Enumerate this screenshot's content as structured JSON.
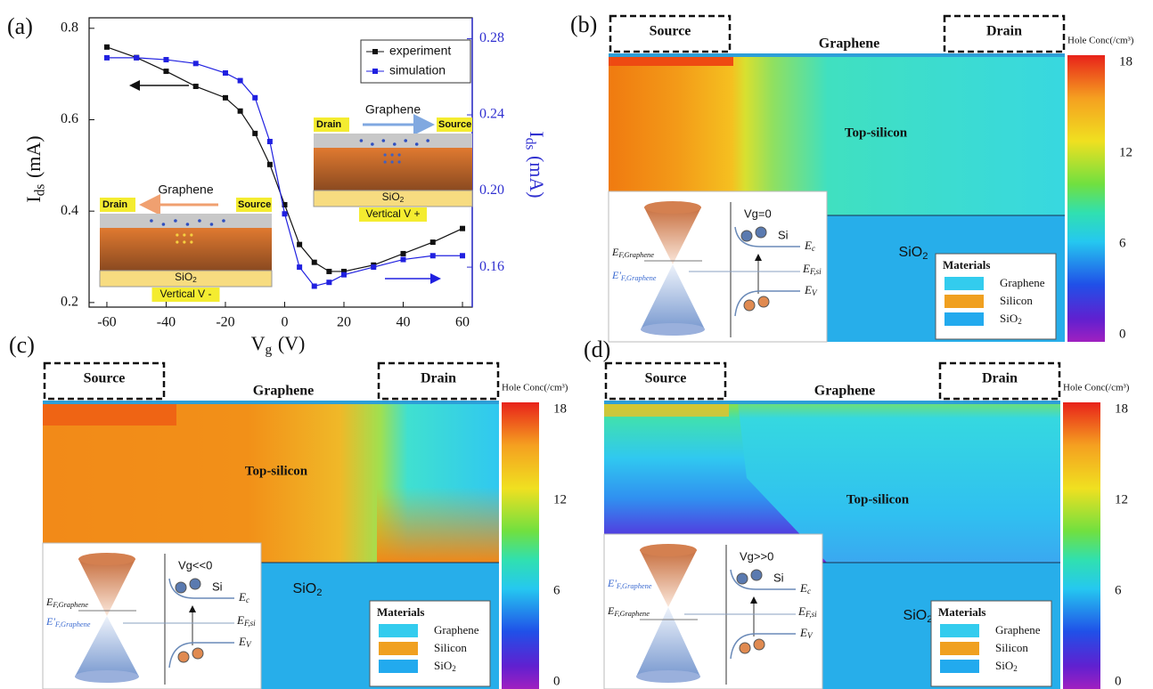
{
  "chart_data": {
    "type": "line",
    "panel_label": "(a)",
    "xlabel": {
      "base": "V",
      "sub": "g",
      "unit": "(V)"
    },
    "ylabel": {
      "base": "I",
      "sub": "ds",
      "unit": "(mA)"
    },
    "y2label": {
      "base": "I",
      "sub": "ds",
      "unit": "(mA)"
    },
    "x": [
      -60,
      -50,
      -40,
      -30,
      -20,
      -15,
      -10,
      -5,
      0,
      5,
      10,
      15,
      20,
      30,
      40,
      50,
      60
    ],
    "series": [
      {
        "name": "experiment",
        "color": "#111111",
        "values": [
          0.759,
          0.736,
          0.706,
          0.673,
          0.648,
          0.619,
          0.57,
          0.502,
          0.414,
          0.327,
          0.288,
          0.268,
          0.268,
          0.282,
          0.307,
          0.332,
          0.362
        ]
      },
      {
        "name": "simulation",
        "color": "#2020e0",
        "axis": "y2",
        "values": [
          0.27,
          0.27,
          0.269,
          0.267,
          0.262,
          0.258,
          0.249,
          0.226,
          0.188,
          0.16,
          0.15,
          0.152,
          0.156,
          0.16,
          0.164,
          0.166,
          0.166
        ]
      }
    ],
    "xlim": [
      -66,
      63.3
    ],
    "xticks": [
      -60,
      -40,
      -20,
      0,
      20,
      40,
      60
    ],
    "ylim": [
      0.19,
      0.823
    ],
    "yticks": [
      0.2,
      0.4,
      0.6,
      0.8
    ],
    "y2lim": [
      0.139,
      0.291
    ],
    "y2ticks": [
      0.16,
      {
        "value": 0.2,
        "label": "0.20"
      },
      0.24,
      0.28
    ],
    "legend": "upper right",
    "insets": [
      {
        "title": "Graphene",
        "left": "Drain",
        "right": "Source",
        "substrate": {
          "base": "SiO",
          "sub": "2"
        },
        "bias": "Vertical V -"
      },
      {
        "title": "Graphene",
        "left": "Drain",
        "right": "Source",
        "substrate": {
          "base": "SiO",
          "sub": "2"
        },
        "bias": "Vertical V +"
      }
    ]
  },
  "panels": [
    {
      "label": "(b)",
      "source": "Source",
      "drain": "Drain",
      "graphene": "Graphene",
      "silicon": "Top-silicon",
      "oxide": {
        "base": "SiO",
        "sub": "2"
      },
      "colorbar_title": "Hole Conc(/cm³)",
      "colorbar_ticks": [
        18,
        12,
        6,
        0
      ],
      "materials": {
        "title": "Materials",
        "items": [
          "Graphene",
          "Silicon",
          {
            "base": "SiO",
            "sub": "2"
          }
        ]
      },
      "band": {
        "gate": "Vg=0",
        "semiconductor": "Si",
        "ec": {
          "base": "E",
          "sub": "c"
        },
        "ef_graphene": {
          "base": "E",
          "sub": "F,Graphene"
        },
        "ef_graphene_shifted": {
          "base": "E'",
          "sub": "F,Graphene"
        },
        "ef_si": {
          "base": "E",
          "sub": "F,si"
        },
        "ev": {
          "base": "E",
          "sub": "V"
        }
      }
    },
    {
      "label": "(c)",
      "source": "Source",
      "drain": "Drain",
      "graphene": "Graphene",
      "silicon": "Top-silicon",
      "oxide": {
        "base": "SiO",
        "sub": "2"
      },
      "colorbar_title": "Hole Conc(/cm³)",
      "colorbar_ticks": [
        18,
        12,
        6,
        0
      ],
      "materials": {
        "title": "Materials",
        "items": [
          "Graphene",
          "Silicon",
          {
            "base": "SiO",
            "sub": "2"
          }
        ]
      },
      "band": {
        "gate": "Vg<<0",
        "semiconductor": "Si",
        "ec": {
          "base": "E",
          "sub": "c"
        },
        "ef_graphene": {
          "base": "E",
          "sub": "F,Graphene"
        },
        "ef_graphene_shifted": {
          "base": "E'",
          "sub": "F,Graphene"
        },
        "ef_si": {
          "base": "E",
          "sub": "F,si"
        },
        "ev": {
          "base": "E",
          "sub": "V"
        }
      }
    },
    {
      "label": "(d)",
      "source": "Source",
      "drain": "Drain",
      "graphene": "Graphene",
      "silicon": "Top-silicon",
      "oxide": {
        "base": "SiO",
        "sub": "2"
      },
      "colorbar_title": "Hole Conc(/cm³)",
      "colorbar_ticks": [
        18,
        12,
        6,
        0
      ],
      "materials": {
        "title": "Materials",
        "items": [
          "Graphene",
          "Silicon",
          {
            "base": "SiO",
            "sub": "2"
          }
        ]
      },
      "band": {
        "gate": "Vg>>0",
        "semiconductor": "Si",
        "ec": {
          "base": "E",
          "sub": "c"
        },
        "ef_graphene": {
          "base": "E",
          "sub": "F,Graphene"
        },
        "ef_graphene_shifted": {
          "base": "E'",
          "sub": "F,Graphene"
        },
        "ef_si": {
          "base": "E",
          "sub": "F,si"
        },
        "ev": {
          "base": "E",
          "sub": "V"
        }
      }
    }
  ]
}
